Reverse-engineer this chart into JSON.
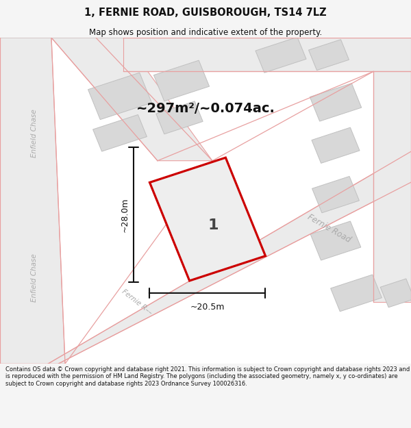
{
  "title": "1, FERNIE ROAD, GUISBOROUGH, TS14 7LZ",
  "subtitle": "Map shows position and indicative extent of the property.",
  "area_text": "~297m²/~0.074ac.",
  "dim_width": "~20.5m",
  "dim_height": "~28.0m",
  "plot_label": "1",
  "footer": "Contains OS data © Crown copyright and database right 2021. This information is subject to Crown copyright and database rights 2023 and is reproduced with the permission of HM Land Registry. The polygons (including the associated geometry, namely x, y co-ordinates) are subject to Crown copyright and database rights 2023 Ordnance Survey 100026316.",
  "bg_color": "#f5f5f5",
  "map_bg": "#ffffff",
  "road_fill": "#ebebeb",
  "road_stroke": "#e8a0a0",
  "building_fill": "#d8d8d8",
  "building_stroke": "#c0c0c0",
  "plot_stroke": "#cc0000",
  "plot_fill": "#eeeeee",
  "dim_color": "#111111",
  "title_color": "#111111",
  "footer_color": "#111111",
  "road_label_color": "#aaaaaa"
}
